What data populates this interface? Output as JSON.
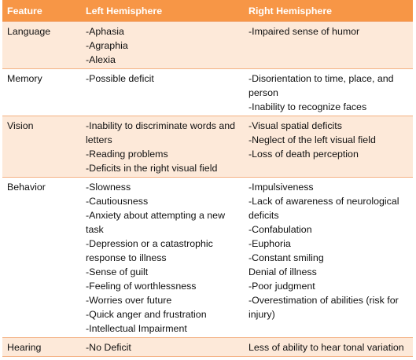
{
  "table": {
    "header": [
      "Feature",
      "Left Hemisphere",
      "Right Hemisphere"
    ],
    "rows": [
      [
        "Language",
        [
          "-Aphasia",
          "-Agraphia",
          "-Alexia"
        ],
        [
          "-Impaired sense of humor"
        ]
      ],
      [
        "Memory",
        [
          "-Possible deficit"
        ],
        [
          "-Disorientation to time, place, and person",
          "-Inability to recognize faces"
        ]
      ],
      [
        "Vision",
        [
          "-Inability to discriminate words and letters",
          "-Reading problems",
          "-Deficits in the right visual field"
        ],
        [
          "-Visual spatial deficits",
          "-Neglect of the left visual field",
          "-Loss of death perception"
        ]
      ],
      [
        "Behavior",
        [
          "-Slowness",
          "-Cautiousness",
          "-Anxiety about attempting a new task",
          "-Depression or a catastrophic response to illness",
          "-Sense of guilt",
          "-Feeling of worthlessness",
          "-Worries over future",
          "-Quick anger and frustration",
          "-Intellectual Impairment"
        ],
        [
          "-Impulsiveness",
          "-Lack of awareness of neurological deficits",
          "-Confabulation",
          "-Euphoria",
          "-Constant smiling",
          "Denial of illness",
          "-Poor judgment",
          "-Overestimation of abilities (risk for injury)"
        ]
      ],
      [
        "Hearing",
        [
          "-No Deficit"
        ],
        [
          "Less of ability to hear tonal variation"
        ]
      ]
    ]
  }
}
